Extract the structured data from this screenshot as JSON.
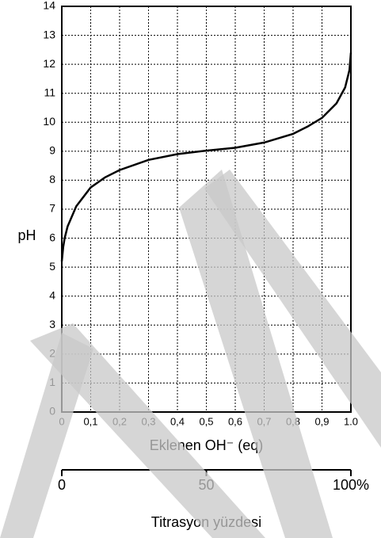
{
  "chart_data": {
    "type": "line",
    "x": [
      0,
      0.005,
      0.01,
      0.02,
      0.05,
      0.1,
      0.15,
      0.2,
      0.3,
      0.4,
      0.5,
      0.6,
      0.7,
      0.8,
      0.85,
      0.9,
      0.95,
      0.98,
      0.995,
      1.0
    ],
    "values": [
      5.2,
      5.7,
      6.0,
      6.4,
      7.1,
      7.75,
      8.1,
      8.35,
      8.7,
      8.9,
      9.02,
      9.12,
      9.3,
      9.6,
      9.85,
      10.15,
      10.65,
      11.2,
      11.8,
      12.4
    ],
    "color": "#000000",
    "xlabel": "Eklenen OH⁻ (eq)",
    "ylabel": "pH",
    "xlim": [
      0,
      1
    ],
    "ylim": [
      0,
      14
    ],
    "xticks": [
      0,
      {
        "value": 0.1,
        "label": "0,1"
      },
      {
        "value": 0.2,
        "label": "0,2"
      },
      {
        "value": 0.3,
        "label": "0,3"
      },
      {
        "value": 0.4,
        "label": "0,4"
      },
      {
        "value": 0.5,
        "label": "0,5"
      },
      {
        "value": 0.6,
        "label": "0,6"
      },
      {
        "value": 0.7,
        "label": "0,7"
      },
      {
        "value": 0.8,
        "label": "0,8"
      },
      {
        "value": 0.9,
        "label": "0,9"
      },
      {
        "value": 1,
        "label": "1.0"
      }
    ],
    "yticks": [
      0,
      1,
      2,
      3,
      4,
      5,
      6,
      7,
      8,
      9,
      10,
      11,
      12,
      13,
      14
    ],
    "grid": true,
    "x2lim": [
      0,
      100
    ],
    "x2ticks": [
      0,
      50,
      {
        "value": 100,
        "label": "100%"
      }
    ],
    "x2label": "Titrasyon yüzdesi"
  }
}
